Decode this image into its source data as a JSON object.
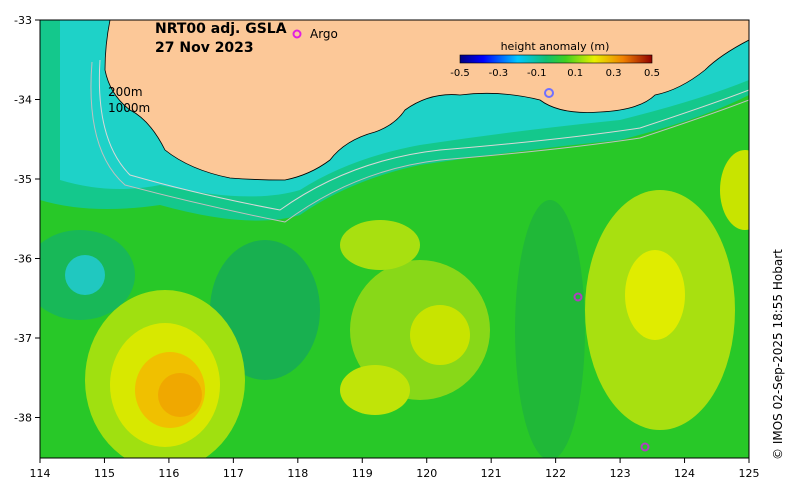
{
  "map": {
    "title_line1": "NRT00 adj. GSLA",
    "title_line2": "27 Nov 2023",
    "legend_marker_label": "Argo",
    "depth_label_1": "200m",
    "depth_label_2": "1000m",
    "copyright": "© IMOS 02-Sep-2025 18:55 Hobart"
  },
  "colorbar": {
    "title": "height anomaly (m)",
    "ticks": [
      "-0.5",
      "-0.3",
      "-0.1",
      "0.1",
      "0.3",
      "0.5"
    ]
  },
  "axes": {
    "x_ticks": [
      "114",
      "115",
      "116",
      "117",
      "118",
      "119",
      "120",
      "121",
      "122",
      "123",
      "124",
      "125"
    ],
    "y_ticks": [
      "-33",
      "-34",
      "-35",
      "-36",
      "-37",
      "-38"
    ]
  },
  "colors": {
    "land": "#fcc898",
    "argo": "#e020e0"
  }
}
